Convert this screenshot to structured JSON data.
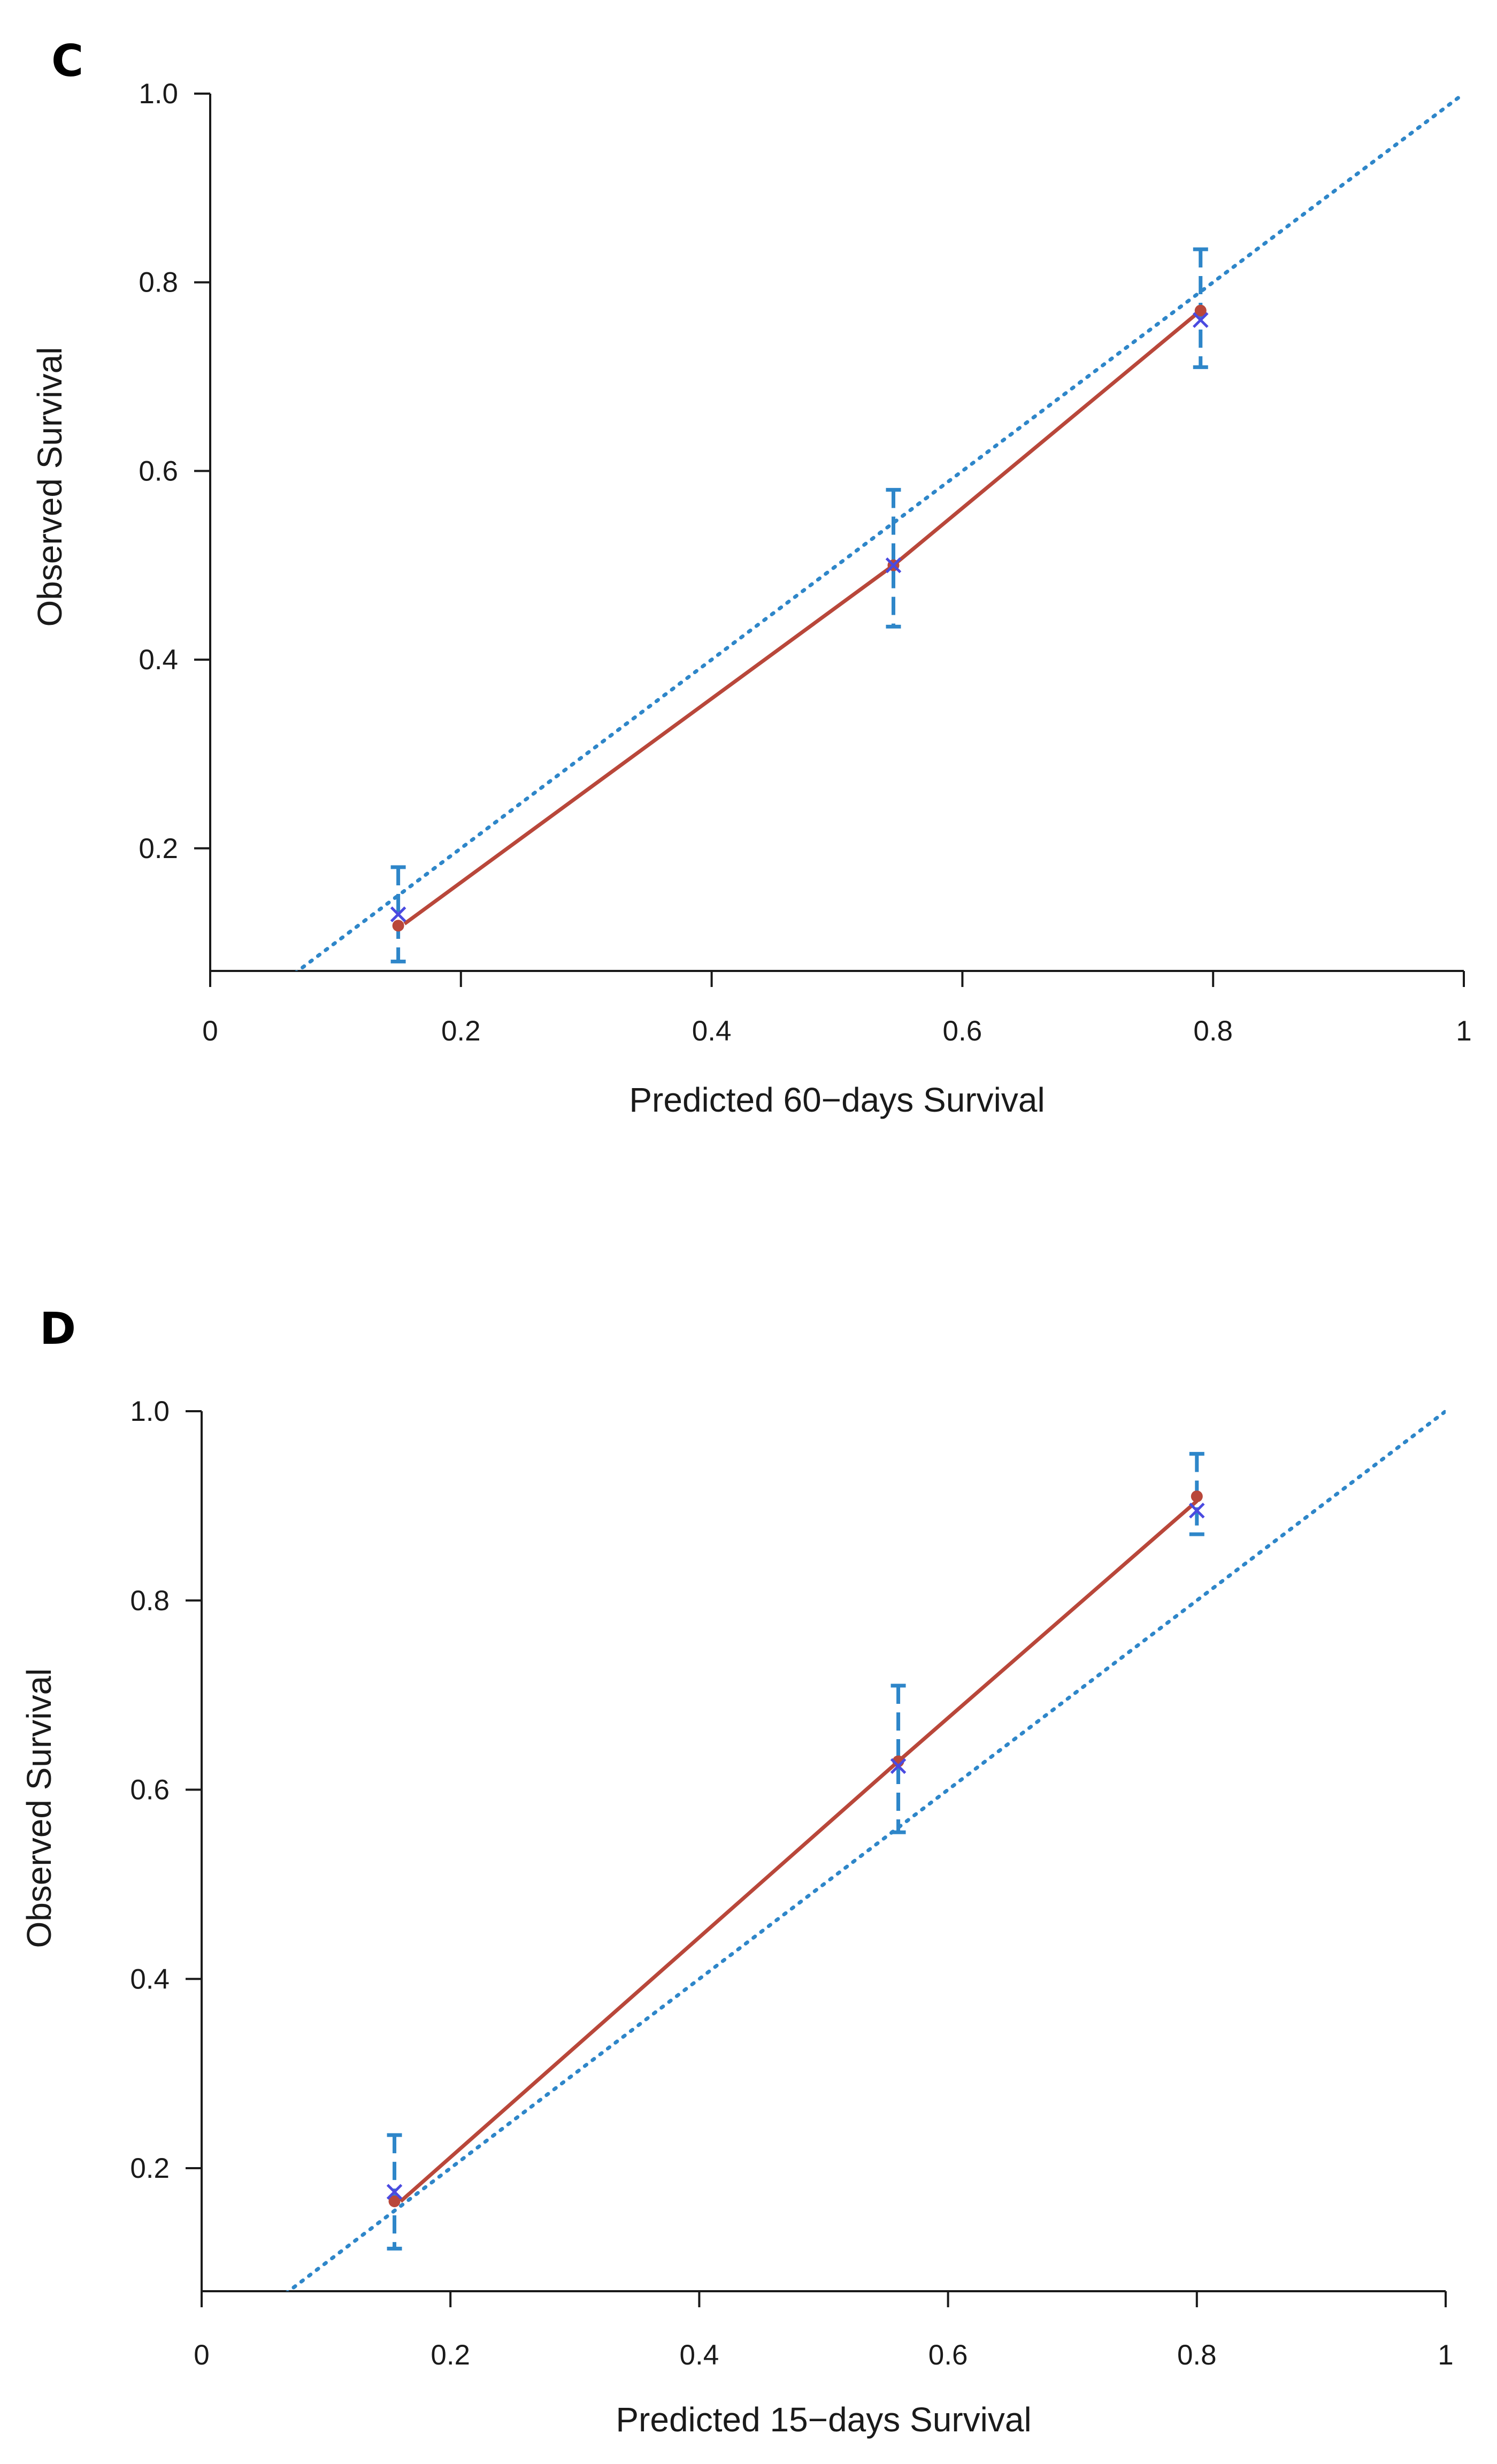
{
  "figure": {
    "panels": [
      "C",
      "D"
    ]
  },
  "colors": {
    "diagonal": "#2e86c9",
    "calibration": "#b9473a",
    "error_bar": "#2e86c9",
    "observed_point": "#b9473a",
    "predicted_marker": "#4a4ae0",
    "axis": "#1a1a1a"
  },
  "chart_data": [
    {
      "panel": "C",
      "type": "line",
      "title": "",
      "xlabel": "Predicted 60−days Survival",
      "ylabel": "Observed Survival",
      "xlim": [
        0,
        1
      ],
      "ylim": [
        0.07,
        1.0
      ],
      "x_ticks": [
        0,
        0.2,
        0.4,
        0.6,
        0.8,
        1
      ],
      "x_tick_labels": [
        "0",
        "0.2",
        "0.4",
        "0.6",
        "0.8",
        "1"
      ],
      "y_ticks": [
        0.2,
        0.4,
        0.6,
        0.8,
        1.0
      ],
      "y_tick_labels": [
        "0.2",
        "0.4",
        "0.6",
        "0.8",
        "1.0"
      ],
      "reference_line": {
        "style": "dotted",
        "from": [
          0,
          0
        ],
        "to": [
          1,
          1
        ]
      },
      "series": [
        {
          "style": "solid",
          "x": [
            0.155,
            0.545,
            0.79
          ],
          "y": [
            0.12,
            0.5,
            0.77
          ]
        },
        {
          "style": "points",
          "x": [
            0.15,
            0.545,
            0.79
          ],
          "y": [
            0.118,
            0.5,
            0.77
          ]
        },
        {
          "style": "x-marker",
          "x": [
            0.15,
            0.545,
            0.79
          ],
          "y": [
            0.13,
            0.5,
            0.76
          ]
        },
        {
          "style": "error-bars",
          "x": [
            0.15,
            0.545,
            0.79
          ],
          "low": [
            0.08,
            0.435,
            0.71
          ],
          "high": [
            0.18,
            0.58,
            0.835
          ]
        }
      ]
    },
    {
      "panel": "D",
      "type": "line",
      "title": "",
      "xlabel": "Predicted 15−days Survival",
      "ylabel": "Observed Survival",
      "xlim": [
        0,
        1
      ],
      "ylim": [
        0.07,
        1.0
      ],
      "x_ticks": [
        0,
        0.2,
        0.4,
        0.6,
        0.8,
        1
      ],
      "x_tick_labels": [
        "0",
        "0.2",
        "0.4",
        "0.6",
        "0.8",
        "1"
      ],
      "y_ticks": [
        0.2,
        0.4,
        0.6,
        0.8,
        1.0
      ],
      "y_tick_labels": [
        "0.2",
        "0.4",
        "0.6",
        "0.8",
        "1.0"
      ],
      "reference_line": {
        "style": "dotted",
        "from": [
          0,
          0
        ],
        "to": [
          1,
          1
        ]
      },
      "series": [
        {
          "style": "solid",
          "x": [
            0.16,
            0.56,
            0.8
          ],
          "y": [
            0.165,
            0.63,
            0.905
          ]
        },
        {
          "style": "points",
          "x": [
            0.155,
            0.56,
            0.8
          ],
          "y": [
            0.165,
            0.63,
            0.91
          ]
        },
        {
          "style": "x-marker",
          "x": [
            0.155,
            0.56,
            0.8
          ],
          "y": [
            0.175,
            0.625,
            0.895
          ]
        },
        {
          "style": "error-bars",
          "x": [
            0.155,
            0.56,
            0.8
          ],
          "low": [
            0.115,
            0.555,
            0.87
          ],
          "high": [
            0.235,
            0.71,
            0.955
          ]
        }
      ]
    }
  ]
}
